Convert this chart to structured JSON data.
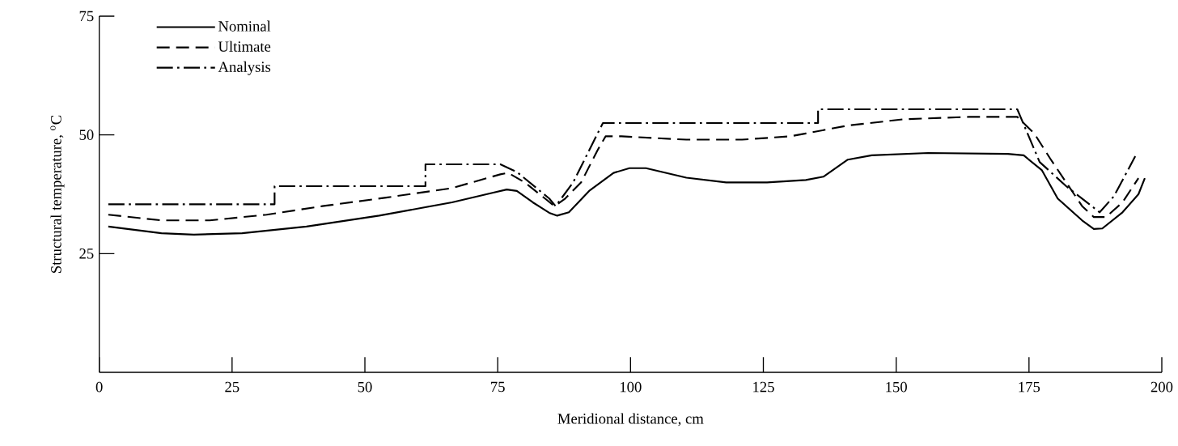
{
  "chart_data": {
    "type": "line",
    "xlabel": "Meridional distance,  cm",
    "ylabel": "Structural temperature,  $^{o}$C",
    "xlim": [
      0,
      200
    ],
    "ylim": [
      0,
      75
    ],
    "xticks": [
      0,
      25,
      50,
      75,
      100,
      125,
      150,
      175,
      200
    ],
    "yticks": [
      25,
      50,
      75
    ],
    "legend": "top left",
    "grid": false,
    "marker": "none",
    "series": [
      {
        "name": "Nominal",
        "color": "#000000",
        "line_style": "solid",
        "x": [
          1.7,
          11.7,
          17.8,
          26.9,
          39,
          52.7,
          66.4,
          74,
          76.7,
          78.6,
          81.6,
          84.7,
          86.2,
          88.4,
          92.2,
          96.8,
          99.8,
          102.9,
          110.5,
          118,
          125.7,
          133,
          136.3,
          140.9,
          145.4,
          156,
          171,
          174,
          177.4,
          180.4,
          185,
          187.2,
          188.8,
          192.6,
          195.6,
          196.8
        ],
        "values": [
          30.7,
          29.3,
          29,
          29.3,
          30.7,
          33,
          35.8,
          37.8,
          38.5,
          38.2,
          35.8,
          33.6,
          33,
          33.7,
          38.2,
          42,
          43,
          43,
          41,
          40,
          40,
          40.5,
          41.2,
          44.8,
          45.7,
          46.2,
          46,
          45.7,
          42.6,
          36.6,
          32,
          30.2,
          30.3,
          33.7,
          37.5,
          40.9
        ]
      },
      {
        "name": "Ultimate",
        "color": "#000000",
        "line_style": "dashed",
        "x": [
          1.7,
          11.7,
          20.8,
          31.5,
          42,
          54,
          66.4,
          75.5,
          77,
          80.1,
          83.9,
          85.7,
          87.7,
          90.7,
          93.8,
          95.3,
          98.3,
          110.5,
          121,
          130,
          133,
          141,
          151.5,
          163.7,
          172.8,
          176,
          179,
          182,
          185,
          187.2,
          189.5,
          192.6,
          195.6
        ],
        "values": [
          33.2,
          32,
          32,
          33.2,
          35,
          36.8,
          38.8,
          41.7,
          42,
          40,
          36.6,
          35,
          36.6,
          40,
          46.8,
          49.7,
          49.7,
          49,
          49,
          49.7,
          50.3,
          52,
          53.3,
          53.8,
          53.8,
          50.3,
          45,
          40,
          35,
          32.7,
          32.7,
          35.8,
          40.9
        ]
      },
      {
        "name": "Analysis",
        "color": "#000000",
        "line_style": "dashdot",
        "x": [
          1.7,
          33,
          33,
          61.4,
          61.4,
          75.5,
          78.6,
          84.7,
          85.9,
          89.2,
          93.8,
          94.8,
          135.3,
          135.3,
          172.8,
          177,
          182,
          188.3,
          191,
          195
        ],
        "values": [
          35.4,
          35.4,
          39.2,
          39.2,
          43.8,
          43.8,
          42.2,
          36.6,
          35,
          40,
          50.3,
          52.5,
          52.5,
          55.4,
          55.4,
          44.3,
          39.2,
          33.7,
          37.1,
          45.5
        ]
      }
    ]
  }
}
